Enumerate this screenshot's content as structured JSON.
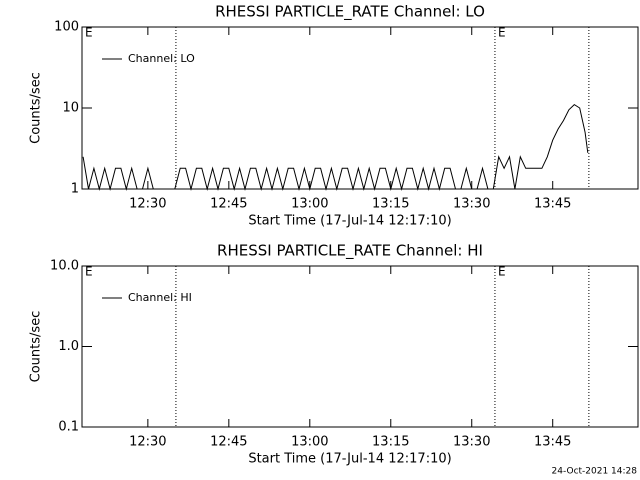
{
  "chart_data": [
    {
      "type": "line",
      "title": "RHESSI PARTICLE_RATE Channel: LO",
      "xlabel": "Start Time (17-Jul-14 12:17:10)",
      "ylabel": "Counts/sec",
      "log_y": true,
      "legend": "top-left",
      "xlim": [
        17.8,
        120.8
      ],
      "xticks": [
        {
          "value": 30,
          "label": "12:30"
        },
        {
          "value": 45,
          "label": "12:45"
        },
        {
          "value": 60,
          "label": "13:00"
        },
        {
          "value": 75,
          "label": "13:15"
        },
        {
          "value": 90,
          "label": "13:30"
        },
        {
          "value": 105,
          "label": "13:45"
        }
      ],
      "ylim": [
        1,
        100
      ],
      "yticks": [
        1,
        10,
        100
      ],
      "vlines": [
        35.2,
        94.3,
        111.7
      ],
      "markers": [
        {
          "x": 17.8,
          "label": "E"
        },
        {
          "x": 94.3,
          "label": "E"
        }
      ],
      "series": [
        {
          "name": "Channel: LO",
          "color": "#000000",
          "x": [
            18,
            19,
            20,
            21,
            22,
            23,
            24,
            25,
            26,
            27,
            28,
            29,
            30,
            31,
            32,
            33,
            34,
            35,
            36,
            37,
            38,
            39,
            40,
            41,
            42,
            43,
            44,
            45,
            46,
            47,
            48,
            49,
            50,
            51,
            52,
            53,
            54,
            55,
            56,
            57,
            58,
            59,
            60,
            61,
            62,
            63,
            64,
            65,
            66,
            67,
            68,
            69,
            70,
            71,
            72,
            73,
            74,
            75,
            76,
            77,
            78,
            79,
            80,
            81,
            82,
            83,
            84,
            85,
            86,
            87,
            88,
            89,
            90,
            91,
            92,
            93,
            94,
            95,
            96,
            97,
            98,
            99,
            100,
            101,
            102,
            103,
            104,
            105,
            106,
            107,
            108,
            109,
            110,
            111,
            111.5
          ],
          "values": [
            2.5,
            1,
            1.8,
            1,
            1.8,
            1,
            1.8,
            1.8,
            1,
            1.8,
            1,
            1,
            1.8,
            1,
            1,
            1,
            1,
            1,
            1.8,
            1.8,
            1,
            1.8,
            1.8,
            1,
            1.8,
            1,
            1.8,
            1.8,
            1,
            1.8,
            1,
            1.8,
            1.8,
            1,
            1.8,
            1,
            1.8,
            1,
            1.8,
            1.8,
            1,
            1.8,
            1,
            1.8,
            1.8,
            1,
            1.8,
            1,
            1.8,
            1.8,
            1,
            1.8,
            1,
            1.8,
            1,
            1.8,
            1.8,
            1,
            1.8,
            1,
            1.8,
            1.8,
            1,
            1.8,
            1,
            1.8,
            1,
            1.8,
            1.8,
            1,
            1,
            1.8,
            1,
            1,
            1.8,
            1,
            1,
            2.5,
            1.8,
            2.5,
            1,
            2.5,
            1.8,
            1.8,
            1.8,
            1.8,
            2.5,
            4,
            5.5,
            7,
            9.5,
            11,
            10,
            5,
            2.8
          ]
        }
      ]
    },
    {
      "type": "line",
      "title": "RHESSI PARTICLE_RATE Channel: HI",
      "xlabel": "Start Time (17-Jul-14 12:17:10)",
      "ylabel": "Counts/sec",
      "log_y": true,
      "legend": "top-left",
      "xlim": [
        17.8,
        120.8
      ],
      "xticks": [
        {
          "value": 30,
          "label": "12:30"
        },
        {
          "value": 45,
          "label": "12:45"
        },
        {
          "value": 60,
          "label": "13:00"
        },
        {
          "value": 75,
          "label": "13:15"
        },
        {
          "value": 90,
          "label": "13:30"
        },
        {
          "value": 105,
          "label": "13:45"
        }
      ],
      "ylim": [
        0.1,
        10
      ],
      "yticks": [
        0.1,
        {
          "value": 1,
          "label": "1.0"
        },
        {
          "value": 10,
          "label": "10.0"
        }
      ],
      "vlines": [
        35.2,
        94.3,
        111.7
      ],
      "markers": [
        {
          "x": 17.8,
          "label": "E"
        },
        {
          "x": 94.3,
          "label": "E"
        }
      ],
      "series": [
        {
          "name": "Channel: HI",
          "color": "#000000",
          "x": [],
          "values": []
        }
      ]
    }
  ],
  "footer": "24-Oct-2021 14:28"
}
